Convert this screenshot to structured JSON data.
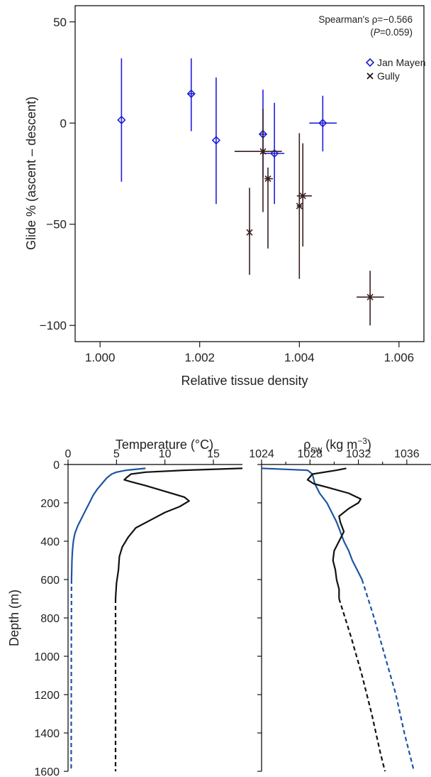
{
  "chart_data": [
    {
      "type": "scatter",
      "xlabel": "Relative tissue density",
      "ylabel": "Glide % (ascent – descent)",
      "xlim": [
        0.9995,
        1.0065
      ],
      "ylim": [
        -108,
        58
      ],
      "xticks": [
        1.0,
        1.002,
        1.004,
        1.006
      ],
      "xtick_labels": [
        "1.000",
        "1.002",
        "1.004",
        "1.006"
      ],
      "yticks": [
        50,
        0,
        -50,
        -100
      ],
      "ytick_labels": [
        "50",
        "0",
        "−50",
        "−100"
      ],
      "annotation": {
        "line1": "Spearman's ρ=−0.566",
        "line2_prefix": "(",
        "line2_italic": "P",
        "line2_suffix": "=0.059)"
      },
      "legend_position": "top-right",
      "series": [
        {
          "name": "Jan Mayen",
          "marker": "diamond",
          "color": "#1f1fd6",
          "points": [
            {
              "x": 1.00043,
              "y": 1.5,
              "ylo": -29,
              "yhi": 32,
              "xlo": 1.00043,
              "xhi": 1.00043
            },
            {
              "x": 1.00183,
              "y": 14.5,
              "ylo": -4,
              "yhi": 32,
              "xlo": 1.00178,
              "xhi": 1.00188
            },
            {
              "x": 1.00233,
              "y": -8.5,
              "ylo": -40,
              "yhi": 22.5,
              "xlo": 1.00233,
              "xhi": 1.00233
            },
            {
              "x": 1.00327,
              "y": -5.5,
              "ylo": -27,
              "yhi": 16.5,
              "xlo": 1.0032,
              "xhi": 1.00333
            },
            {
              "x": 1.0035,
              "y": -15,
              "ylo": -40,
              "yhi": 10,
              "xlo": 1.00325,
              "xhi": 1.0037
            },
            {
              "x": 1.00447,
              "y": 0,
              "ylo": -14,
              "yhi": 13.5,
              "xlo": 1.0042,
              "xhi": 1.00475
            }
          ]
        },
        {
          "name": "Gully",
          "marker": "x",
          "color": "#3a1f1f",
          "points": [
            {
              "x": 1.003,
              "y": -54,
              "ylo": -75,
              "yhi": -32,
              "xlo": 1.003,
              "xhi": 1.003
            },
            {
              "x": 1.00327,
              "y": -14,
              "ylo": -44,
              "yhi": 7,
              "xlo": 1.0027,
              "xhi": 1.00365
            },
            {
              "x": 1.00337,
              "y": -27.5,
              "ylo": -62,
              "yhi": -22,
              "xlo": 1.0033,
              "xhi": 1.00347
            },
            {
              "x": 1.004,
              "y": -41,
              "ylo": -77,
              "yhi": -5,
              "xlo": 1.00395,
              "xhi": 1.00405
            },
            {
              "x": 1.00407,
              "y": -36,
              "ylo": -61,
              "yhi": -10,
              "xlo": 1.00395,
              "xhi": 1.00425
            },
            {
              "x": 1.00542,
              "y": -86,
              "ylo": -100,
              "yhi": -73,
              "xlo": 1.00515,
              "xhi": 1.0057
            }
          ]
        }
      ]
    },
    {
      "type": "line",
      "ylabel": "Depth (m)",
      "ylim": [
        0,
        1600
      ],
      "yticks": [
        0,
        200,
        400,
        600,
        800,
        1000,
        1200,
        1400,
        1600
      ],
      "grid": false,
      "left_panel": {
        "xlabel": "Temperature (°C)",
        "xlim": [
          0,
          18
        ],
        "xticks": [
          0,
          5,
          10,
          15
        ],
        "series": [
          {
            "color": "#1d55a4",
            "style": "solid-then-dashed",
            "solid_points": [
              [
                8,
                20
              ],
              [
                6,
                30
              ],
              [
                5,
                40
              ],
              [
                4.5,
                50
              ],
              [
                4.0,
                70
              ],
              [
                3.5,
                100
              ],
              [
                3.0,
                130
              ],
              [
                2.6,
                160
              ],
              [
                2.2,
                200
              ],
              [
                1.8,
                240
              ],
              [
                1.4,
                280
              ],
              [
                1.0,
                320
              ],
              [
                0.7,
                360
              ],
              [
                0.55,
                400
              ],
              [
                0.45,
                450
              ],
              [
                0.4,
                500
              ],
              [
                0.38,
                550
              ],
              [
                0.36,
                600
              ]
            ],
            "dashed_points": [
              [
                0.36,
                600
              ],
              [
                0.34,
                1000
              ],
              [
                0.33,
                1400
              ],
              [
                0.32,
                1600
              ]
            ]
          },
          {
            "color": "#111111",
            "style": "solid-then-dashed",
            "solid_points": [
              [
                18,
                20
              ],
              [
                12,
                30
              ],
              [
                8,
                40
              ],
              [
                6.5,
                50
              ],
              [
                6.0,
                70
              ],
              [
                5.8,
                80
              ],
              [
                6.5,
                90
              ],
              [
                8,
                110
              ],
              [
                10,
                140
              ],
              [
                12,
                170
              ],
              [
                12.5,
                190
              ],
              [
                11.5,
                220
              ],
              [
                10,
                250
              ],
              [
                8.5,
                290
              ],
              [
                7.0,
                330
              ],
              [
                6.2,
                380
              ],
              [
                5.6,
                430
              ],
              [
                5.3,
                480
              ],
              [
                5.2,
                550
              ],
              [
                5.0,
                620
              ],
              [
                4.9,
                700
              ]
            ],
            "dashed_points": [
              [
                4.9,
                700
              ],
              [
                4.9,
                1000
              ],
              [
                4.9,
                1300
              ],
              [
                4.9,
                1600
              ]
            ]
          }
        ]
      },
      "right_panel": {
        "xlabel_base": "ρ",
        "xlabel_sub": "sw",
        "xlabel_units_prefix": " (kg m",
        "xlabel_sup": "−3",
        "xlabel_units_suffix": ")",
        "xlim": [
          1024,
          1038
        ],
        "xticks": [
          1024,
          1028,
          1032,
          1036
        ],
        "series": [
          {
            "color": "#1d55a4",
            "style": "solid-then-dashed",
            "solid_points": [
              [
                1024,
                20
              ],
              [
                1026,
                25
              ],
              [
                1027.8,
                30
              ],
              [
                1028.2,
                50
              ],
              [
                1028.4,
                100
              ],
              [
                1028.8,
                150
              ],
              [
                1029.4,
                200
              ],
              [
                1029.8,
                250
              ],
              [
                1030.2,
                300
              ],
              [
                1030.5,
                350
              ],
              [
                1030.8,
                400
              ],
              [
                1031.2,
                450
              ],
              [
                1031.5,
                500
              ],
              [
                1031.9,
                550
              ],
              [
                1032.3,
                600
              ]
            ],
            "dashed_points": [
              [
                1032.3,
                600
              ],
              [
                1033.3,
                800
              ],
              [
                1034.2,
                1000
              ],
              [
                1035.1,
                1200
              ],
              [
                1035.8,
                1400
              ],
              [
                1036.6,
                1600
              ]
            ]
          },
          {
            "color": "#111111",
            "style": "solid-then-dashed",
            "solid_points": [
              [
                1031.0,
                20
              ],
              [
                1030.2,
                30
              ],
              [
                1028.2,
                50
              ],
              [
                1027.8,
                80
              ],
              [
                1028.3,
                100
              ],
              [
                1029.5,
                120
              ],
              [
                1031.2,
                150
              ],
              [
                1032.2,
                180
              ],
              [
                1032.0,
                200
              ],
              [
                1031.2,
                230
              ],
              [
                1030.4,
                270
              ],
              [
                1030.5,
                300
              ],
              [
                1030.8,
                350
              ],
              [
                1030.4,
                400
              ],
              [
                1030.0,
                450
              ],
              [
                1029.9,
                500
              ],
              [
                1030.1,
                550
              ],
              [
                1030.2,
                600
              ],
              [
                1030.4,
                650
              ],
              [
                1030.4,
                700
              ]
            ],
            "dashed_points": [
              [
                1030.4,
                700
              ],
              [
                1031.4,
                900
              ],
              [
                1032.3,
                1100
              ],
              [
                1033.1,
                1300
              ],
              [
                1033.8,
                1500
              ],
              [
                1034.2,
                1600
              ]
            ]
          }
        ]
      }
    }
  ]
}
